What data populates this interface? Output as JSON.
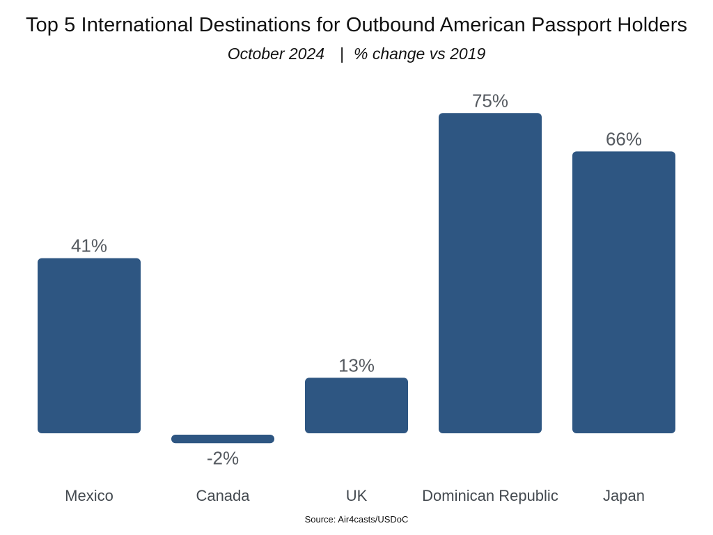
{
  "chart_data": {
    "type": "bar",
    "title": "Top 5 International Destinations for Outbound American Passport Holders",
    "subtitle_period": "October 2024",
    "subtitle_separator": "|",
    "subtitle_measure": "% change vs 2019",
    "categories": [
      "Mexico",
      "Canada",
      "UK",
      "Dominican Republic",
      "Japan"
    ],
    "values": [
      41,
      -2,
      13,
      75,
      66
    ],
    "value_labels": [
      "41%",
      "-2%",
      "13%",
      "75%",
      "66%"
    ],
    "unit": "%",
    "grid": false,
    "legend": "none",
    "source": "Source: Air4casts/USDoC"
  },
  "colors": {
    "bar": "#2e5682",
    "value_label": "#555a60",
    "category_label": "#444a50",
    "title": "#111111"
  }
}
